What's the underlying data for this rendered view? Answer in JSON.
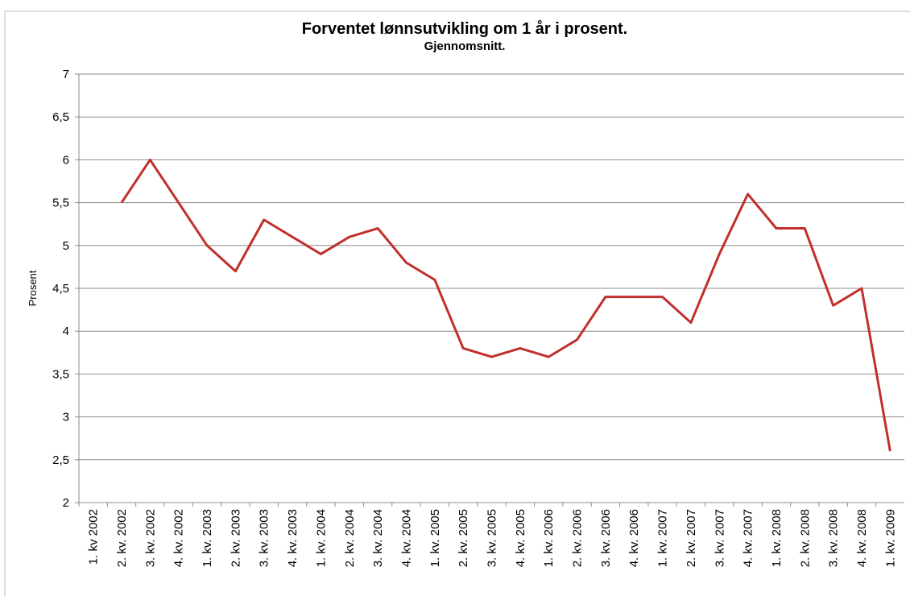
{
  "chart_data": {
    "type": "line",
    "title": "Forventet lønnsutvikling om 1 år i prosent.",
    "subtitle": "Gjennomsnitt.",
    "y_label": "Prosent",
    "categories": [
      "1. kv 2002",
      "2. kv. 2002",
      "3. kv. 2002",
      "4. kv. 2002",
      "1. kv. 2003",
      "2. kv. 2003",
      "3. kv. 2003",
      "4. kv. 2003",
      "1. kv. 2004",
      "2. kv. 2004",
      "3. kv. 2004",
      "4. kv. 2004",
      "1. kv. 2005",
      "2. kv. 2005",
      "3. kv. 2005",
      "4. kv. 2005",
      "1. kv. 2006",
      "2. kv. 2006",
      "3. kv. 2006",
      "4. kv. 2006",
      "1. kv. 2007",
      "2. kv. 2007",
      "3. kv. 2007",
      "4. kv. 2007",
      "1. kv. 2008",
      "2. kv. 2008",
      "3. kv. 2008",
      "4. kv. 2008",
      "1. kv. 2009"
    ],
    "values": [
      null,
      5.5,
      6.0,
      5.5,
      5.0,
      4.7,
      5.3,
      5.1,
      4.9,
      5.1,
      5.2,
      4.8,
      4.6,
      3.8,
      3.7,
      3.8,
      3.7,
      3.9,
      4.4,
      4.4,
      4.4,
      4.1,
      4.9,
      5.6,
      5.2,
      5.2,
      4.3,
      4.5,
      2.6
    ],
    "color": "#c0302c",
    "ylim": [
      2,
      7
    ],
    "yticks": [
      2,
      {
        "value": 2.5,
        "label": "2,5"
      },
      3,
      {
        "value": 3.5,
        "label": "3,5"
      },
      4,
      {
        "value": 4.5,
        "label": "4,5"
      },
      5,
      {
        "value": 5.5,
        "label": "5,5"
      },
      6,
      {
        "value": 6.5,
        "label": "6,5"
      },
      7
    ],
    "grid": true
  }
}
